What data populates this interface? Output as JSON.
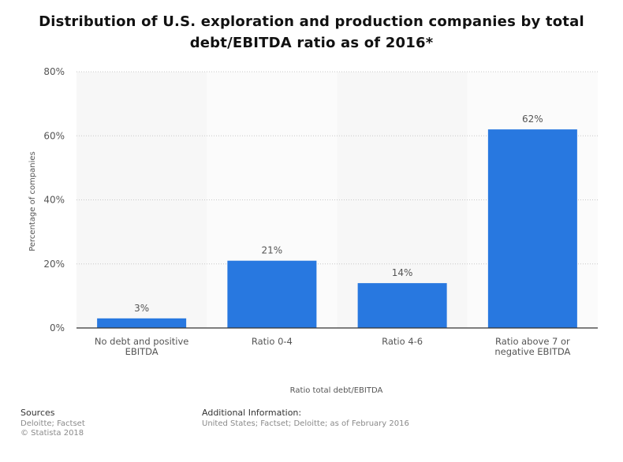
{
  "chart_data": {
    "type": "bar",
    "title": "Distribution of U.S. exploration and production companies by total debt/EBITDA ratio as of 2016*",
    "title_lines": [
      "Distribution of U.S. exploration and production companies by total",
      "debt/EBITDA ratio as of 2016*"
    ],
    "categories": [
      [
        "No debt and positive",
        "EBITDA"
      ],
      [
        "Ratio 0-4"
      ],
      [
        "Ratio 4-6"
      ],
      [
        "Ratio above 7 or",
        "negative EBITDA"
      ]
    ],
    "values": [
      3,
      21,
      14,
      62
    ],
    "value_labels": [
      "3%",
      "21%",
      "14%",
      "62%"
    ],
    "xlabel": "Ratio total debt/EBITDA",
    "ylabel": "Percentage of companies",
    "ylim": [
      0,
      80
    ],
    "yticks": [
      0,
      20,
      40,
      60,
      80
    ],
    "ytick_labels": [
      "0%",
      "20%",
      "40%",
      "60%",
      "80%"
    ],
    "grid": true,
    "bar_color": "#2878e0"
  },
  "footer": {
    "sources_heading": "Sources",
    "sources_line1": "Deloitte; Factset",
    "sources_line2": "© Statista 2018",
    "additional_heading": "Additional Information:",
    "additional_text": "United States; Factset; Deloitte; as of February 2016"
  }
}
